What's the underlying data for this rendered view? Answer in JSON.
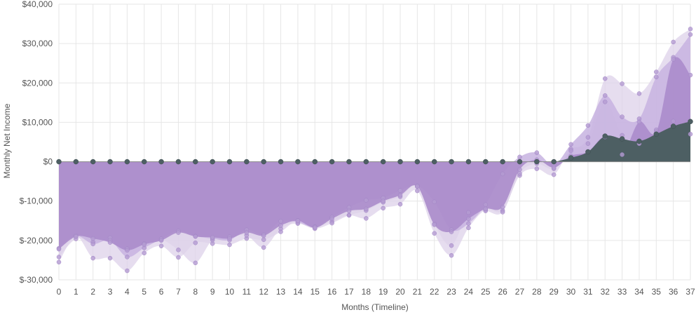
{
  "chart_data": {
    "type": "area",
    "xlabel": "Months (Timeline)",
    "ylabel": "Monthly Net Income",
    "ylim": [
      -30000,
      40000
    ],
    "y_ticks": [
      {
        "value": 40000,
        "label": "$40,000"
      },
      {
        "value": 30000,
        "label": "$30,000"
      },
      {
        "value": 20000,
        "label": "$20,000"
      },
      {
        "value": 10000,
        "label": "$10,000"
      },
      {
        "value": 0,
        "label": "$0"
      },
      {
        "value": -10000,
        "label": "$-10,000"
      },
      {
        "value": -20000,
        "label": "$-20,000"
      },
      {
        "value": -30000,
        "label": "$-30,000"
      }
    ],
    "x": [
      "0",
      "1",
      "2",
      "3",
      "4",
      "5",
      "6",
      "7",
      "8",
      "9",
      "10",
      "11",
      "12",
      "13",
      "14",
      "15",
      "16",
      "17",
      "18",
      "19",
      "20",
      "21",
      "22",
      "23",
      "24",
      "25",
      "26",
      "27",
      "28",
      "29",
      "30",
      "31",
      "32",
      "33",
      "34",
      "35",
      "36",
      "37"
    ],
    "grid": true,
    "colors": {
      "upper_band": "#ddd2ea",
      "mid_band": "#c7b3e0",
      "median_area": "#ab8ccb",
      "baseline_area": "#4d5f63",
      "point": "#b49bd2",
      "baseline_point": "#4d5f63",
      "grid": "#e6e6e6",
      "axis_text": "#555555"
    },
    "series": [
      {
        "values": [
          -25500,
          -19000,
          -24500,
          -24500,
          -27700,
          -23200,
          -21400,
          -24300,
          -20600,
          -20800,
          -21100,
          -19500,
          -19800,
          -17800,
          -14900,
          -16500,
          -15200,
          -13600,
          -14400,
          -11800,
          -10800,
          -7400,
          -18200,
          -23800,
          -16800,
          -12200,
          -12400,
          -3500,
          -1800,
          -3300,
          3200,
          4600,
          15200,
          6700,
          4600,
          8100,
          10300,
          7000
        ]
      },
      {
        "values": [
          -24200,
          -19600,
          -20400,
          -19300,
          -22100,
          -20800,
          -19800,
          -22400,
          -25700,
          -19900,
          -19100,
          -18700,
          -21800,
          -17000,
          -15700,
          -17000,
          -15600,
          -13600,
          -12400,
          -10300,
          -8900,
          -6300,
          -15800,
          -21300,
          -12900,
          -12500,
          -12800,
          -3000,
          -500,
          -1800,
          2800,
          6200,
          21100,
          19800,
          17300,
          22800,
          30400,
          33700
        ]
      },
      {
        "values": [
          -22000,
          -18800,
          -20900,
          -20000,
          -24200,
          -21900,
          -19600,
          -17600,
          -18900,
          -19500,
          -19900,
          -17300,
          -18500,
          -15100,
          -15400,
          -16600,
          -14100,
          -11600,
          -9800,
          -9200,
          -7300,
          -6100,
          -10200,
          -17300,
          -15700,
          -10900,
          -3100,
          1200,
          2300,
          -800,
          4400,
          9200,
          16800,
          11400,
          10900,
          21500,
          26500,
          32300
        ]
      },
      {
        "values": [
          -22200,
          -19000,
          -19500,
          -20500,
          -22500,
          -21000,
          -20000,
          -18000,
          -19000,
          -19200,
          -19500,
          -18000,
          -18800,
          -16200,
          -15000,
          -16800,
          -14500,
          -12500,
          -12000,
          -10000,
          -8500,
          -6300,
          -16000,
          -17800,
          -14500,
          -12000,
          -11500,
          -2000,
          500,
          -1500,
          1500,
          2500,
          6300,
          1800,
          10100,
          7600,
          26000,
          22000
        ]
      },
      {
        "values": [
          0,
          0,
          0,
          0,
          0,
          0,
          0,
          0,
          0,
          0,
          0,
          0,
          0,
          0,
          0,
          0,
          0,
          0,
          0,
          0,
          0,
          0,
          0,
          0,
          0,
          0,
          0,
          0,
          0,
          0,
          1000,
          2500,
          6500,
          5800,
          5200,
          7000,
          9000,
          10200
        ]
      }
    ]
  }
}
